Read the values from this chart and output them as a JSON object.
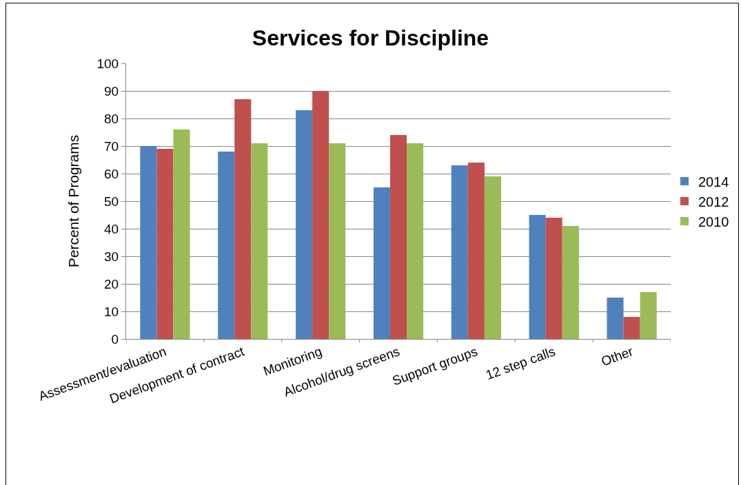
{
  "chart_data": {
    "type": "bar",
    "title": "Services for Discipline",
    "ylabel": "Percent of Programs",
    "categories": [
      "Assessment/evaluation",
      "Development of contract",
      "Monitoring",
      "Alcohol/drug screens",
      "Support groups",
      "12 step calls",
      "Other"
    ],
    "series": [
      {
        "name": "2014",
        "color": "#4f81bd",
        "values": [
          70,
          68,
          83,
          55,
          63,
          45,
          15
        ]
      },
      {
        "name": "2012",
        "color": "#c0504d",
        "values": [
          69,
          87,
          90,
          74,
          64,
          44,
          8
        ]
      },
      {
        "name": "2010",
        "color": "#9bbb59",
        "values": [
          76,
          71,
          71,
          71,
          59,
          41,
          17
        ]
      }
    ],
    "ylim": [
      0,
      100
    ],
    "yticks": [
      0,
      10,
      20,
      30,
      40,
      50,
      60,
      70,
      80,
      90,
      100
    ],
    "grid": "y",
    "legend": "right"
  }
}
